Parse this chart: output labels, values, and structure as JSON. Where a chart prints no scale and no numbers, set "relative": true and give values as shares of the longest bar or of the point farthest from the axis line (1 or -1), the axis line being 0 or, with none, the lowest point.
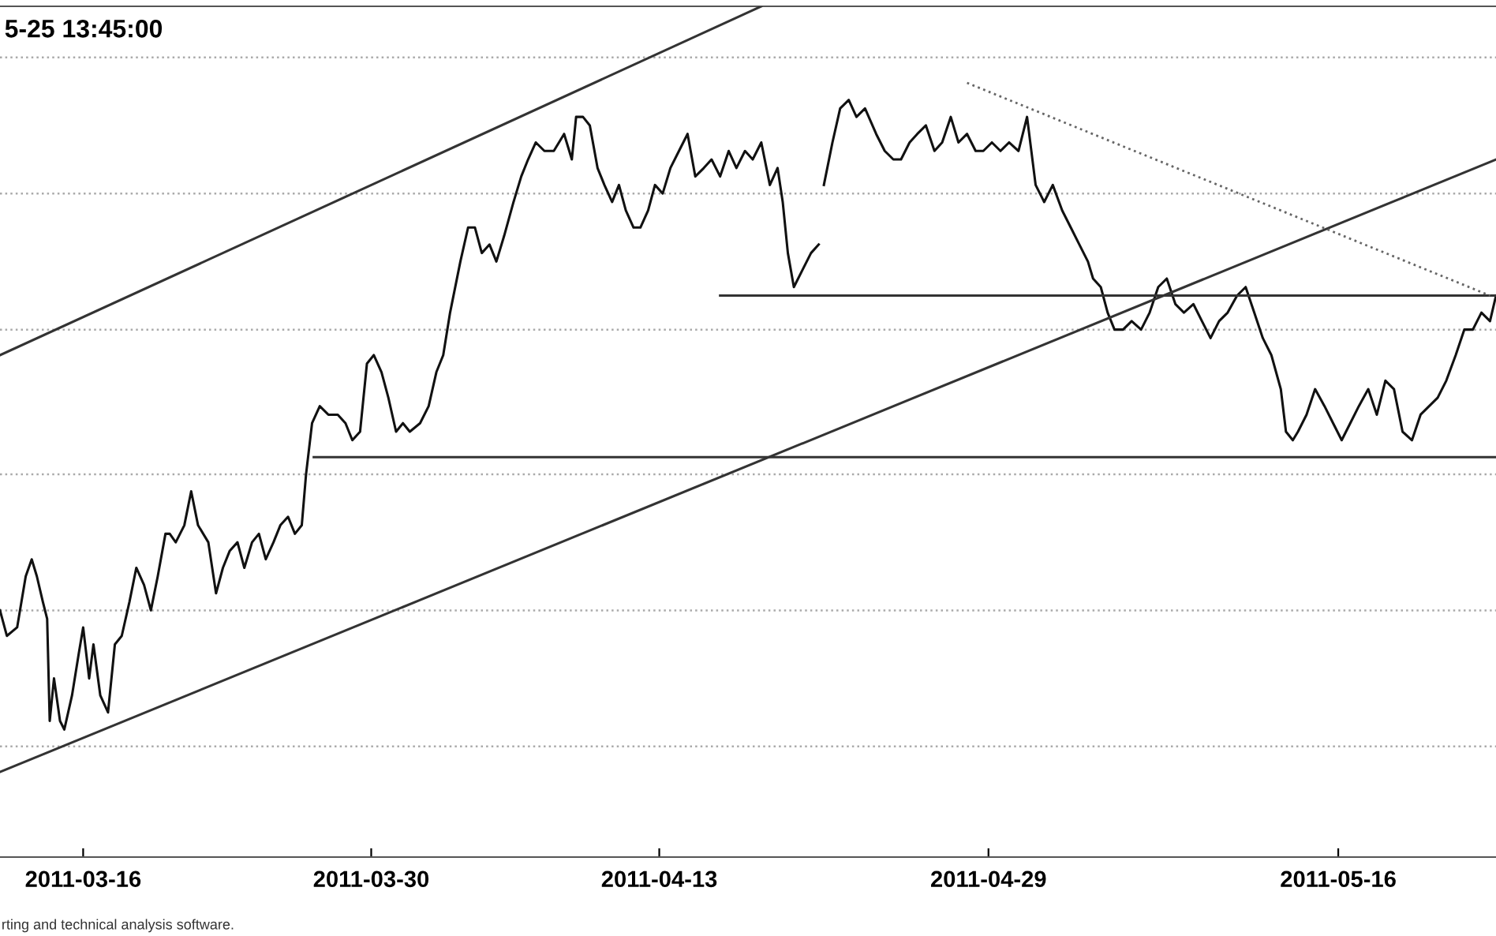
{
  "chart_data": {
    "type": "line",
    "relative": true,
    "title": "5-25 13:45:00",
    "annotations": [
      "rting and technical analysis software."
    ],
    "xlim": [
      "2011-03-11T23:00",
      "2011-05-23T16:00"
    ],
    "xticks": [
      "2011-03-16",
      "2011-03-30",
      "2011-04-13",
      "2011-04-29",
      "2011-05-16"
    ],
    "tick_labels": "x",
    "grid": false,
    "ref_lines": [
      {
        "axis": "y",
        "value": 0.94,
        "color": "#aaaaaa",
        "line_style": "dotted"
      },
      {
        "axis": "y",
        "value": 0.78,
        "color": "#aaaaaa",
        "line_style": "dotted"
      },
      {
        "axis": "y",
        "value": 0.62,
        "color": "#aaaaaa",
        "line_style": "dotted"
      },
      {
        "axis": "y",
        "value": 0.45,
        "color": "#aaaaaa",
        "line_style": "dotted"
      },
      {
        "axis": "y",
        "value": 0.29,
        "color": "#aaaaaa",
        "line_style": "dotted"
      },
      {
        "axis": "y",
        "value": 0.13,
        "color": "#aaaaaa",
        "line_style": "dotted"
      }
    ],
    "series": [
      {
        "color": "#111111",
        "line_style": "solid",
        "x": [
          "2011-03-11T23:00",
          "2011-03-12T07:00",
          "2011-03-12T19:00",
          "2011-03-13T05:00",
          "2011-03-13T12:00",
          "2011-03-13T18:00",
          "2011-03-14T01:00",
          "2011-03-14T06:00",
          "2011-03-14T09:00",
          "2011-03-14T14:00",
          "2011-03-14T21:00",
          "2011-03-15T02:00",
          "2011-03-15T11:00",
          "2011-03-15T19:00",
          "2011-03-16T00:00",
          "2011-03-16T07:00",
          "2011-03-16T12:00",
          "2011-03-16T20:00",
          "2011-03-17T05:00",
          "2011-03-17T13:00",
          "2011-03-17T21:00",
          "2011-03-18T06:00",
          "2011-03-18T14:00",
          "2011-03-18T23:00",
          "2011-03-19T07:00",
          "2011-03-19T15:00",
          "2011-03-20T00:00",
          "2011-03-20T05:00",
          "2011-03-20T12:00",
          "2011-03-20T22:00",
          "2011-03-21T06:00",
          "2011-03-21T14:00",
          "2011-03-22T02:00",
          "2011-03-22T11:00",
          "2011-03-22T19:00",
          "2011-03-23T03:00",
          "2011-03-23T12:00",
          "2011-03-23T20:00",
          "2011-03-24T05:00",
          "2011-03-24T13:00",
          "2011-03-24T21:00",
          "2011-03-25T06:00",
          "2011-03-25T14:00",
          "2011-03-25T23:00",
          "2011-03-26T07:00",
          "2011-03-26T15:00",
          "2011-03-26T20:00",
          "2011-03-27T03:00",
          "2011-03-27T12:00",
          "2011-03-27T22:00",
          "2011-03-28T09:00",
          "2011-03-28T18:00",
          "2011-03-29T02:00",
          "2011-03-29T11:00",
          "2011-03-29T19:00",
          "2011-03-30T03:00",
          "2011-03-30T12:00",
          "2011-03-30T20:00",
          "2011-03-31T05:00",
          "2011-03-31T13:00",
          "2011-03-31T21:00",
          "2011-04-01T09:00",
          "2011-04-01T19:00",
          "2011-04-02T04:00",
          "2011-04-02T12:00",
          "2011-04-02T20:00",
          "2011-04-03T08:00",
          "2011-04-03T17:00",
          "2011-04-04T01:00",
          "2011-04-04T09:00",
          "2011-04-04T18:00",
          "2011-04-05T02:00",
          "2011-04-05T11:00",
          "2011-04-05T22:00",
          "2011-04-06T07:00",
          "2011-04-06T15:00",
          "2011-04-07T00:00",
          "2011-04-07T10:00",
          "2011-04-07T21:00",
          "2011-04-08T09:00",
          "2011-04-08T18:00",
          "2011-04-08T23:00",
          "2011-04-09T07:00",
          "2011-04-09T15:00",
          "2011-04-10T00:00",
          "2011-04-10T08:00",
          "2011-04-10T17:00",
          "2011-04-11T01:00",
          "2011-04-11T09:00",
          "2011-04-11T18:00",
          "2011-04-12T02:00",
          "2011-04-12T11:00",
          "2011-04-12T19:00",
          "2011-04-13T04:00",
          "2011-04-13T13:00",
          "2011-04-13T23:00",
          "2011-04-14T09:00",
          "2011-04-14T18:00",
          "2011-04-15T04:00",
          "2011-04-15T13:00",
          "2011-04-15T23:00",
          "2011-04-16T09:00",
          "2011-04-16T18:00",
          "2011-04-17T04:00",
          "2011-04-17T13:00",
          "2011-04-17T23:00",
          "2011-04-18T09:00",
          "2011-04-18T18:00",
          "2011-04-19T00:00",
          "2011-04-19T06:00",
          "2011-04-19T13:00",
          "2011-04-19T23:00",
          "2011-04-20T09:00",
          "2011-04-20T18:00",
          "2011-04-20T22:00",
          "2011-04-21T00:00",
          "2011-04-21T10:00",
          "2011-04-21T19:00",
          "2011-04-22T05:00",
          "2011-04-22T14:00",
          "2011-04-23T00:00",
          "2011-04-23T13:00",
          "2011-04-23T23:00",
          "2011-04-24T09:00",
          "2011-04-24T18:00",
          "2011-04-25T04:00",
          "2011-04-25T13:00",
          "2011-04-25T23:00",
          "2011-04-26T09:00",
          "2011-04-26T18:00",
          "2011-04-27T04:00",
          "2011-04-27T13:00",
          "2011-04-27T23:00",
          "2011-04-28T09:00",
          "2011-04-28T18:00",
          "2011-04-29T04:00",
          "2011-04-29T14:00",
          "2011-04-30T00:00",
          "2011-04-30T11:00",
          "2011-04-30T21:00",
          "2011-05-01T07:00",
          "2011-05-01T17:00",
          "2011-05-02T03:00",
          "2011-05-02T14:00",
          "2011-05-03T00:00",
          "2011-05-03T10:00",
          "2011-05-03T20:00",
          "2011-05-04T02:00",
          "2011-05-04T11:00",
          "2011-05-04T19:00",
          "2011-05-05T03:00",
          "2011-05-05T13:00",
          "2011-05-05T23:00",
          "2011-05-06T10:00",
          "2011-05-06T20:00",
          "2011-05-07T06:00",
          "2011-05-07T16:00",
          "2011-05-08T02:00",
          "2011-05-08T12:00",
          "2011-05-08T23:00",
          "2011-05-09T09:00",
          "2011-05-09T19:00",
          "2011-05-10T05:00",
          "2011-05-10T15:00",
          "2011-05-11T02:00",
          "2011-05-11T12:00",
          "2011-05-11T22:00",
          "2011-05-12T08:00",
          "2011-05-12T18:00",
          "2011-05-13T05:00",
          "2011-05-13T11:00",
          "2011-05-13T19:00",
          "2011-05-14T01:00",
          "2011-05-14T11:00",
          "2011-05-14T21:00",
          "2011-05-15T08:00",
          "2011-05-15T18:00",
          "2011-05-16T04:00",
          "2011-05-16T14:00",
          "2011-05-17T00:00",
          "2011-05-17T11:00",
          "2011-05-17T21:00",
          "2011-05-18T07:00",
          "2011-05-18T17:00",
          "2011-05-19T03:00",
          "2011-05-19T14:00",
          "2011-05-20T00:00",
          "2011-05-20T10:00",
          "2011-05-20T20:00",
          "2011-05-21T06:00",
          "2011-05-21T17:00",
          "2011-05-22T03:00",
          "2011-05-22T13:00",
          "2011-05-22T23:00",
          "2011-05-23T09:00",
          "2011-05-23T16:00"
        ],
        "values": [
          0.29,
          0.26,
          0.27,
          0.33,
          0.35,
          0.33,
          0.3,
          0.28,
          0.16,
          0.21,
          0.16,
          0.15,
          0.19,
          0.24,
          0.27,
          0.21,
          0.25,
          0.19,
          0.17,
          0.25,
          0.26,
          0.3,
          0.34,
          0.32,
          0.29,
          0.33,
          0.38,
          0.38,
          0.37,
          0.39,
          0.43,
          0.39,
          0.37,
          0.31,
          0.34,
          0.36,
          0.37,
          0.34,
          0.37,
          0.38,
          0.35,
          0.37,
          0.39,
          0.4,
          0.38,
          0.39,
          0.45,
          0.51,
          0.53,
          0.52,
          0.52,
          0.51,
          0.49,
          0.5,
          0.58,
          0.59,
          0.57,
          0.54,
          0.5,
          0.51,
          0.5,
          0.51,
          0.53,
          0.57,
          0.59,
          0.64,
          0.7,
          0.74,
          0.74,
          0.71,
          0.72,
          0.7,
          0.73,
          0.77,
          0.8,
          0.82,
          0.84,
          0.83,
          0.83,
          0.85,
          0.82,
          0.87,
          0.87,
          0.86,
          0.81,
          0.79,
          0.77,
          0.79,
          0.76,
          0.74,
          0.74,
          0.76,
          0.79,
          0.78,
          0.81,
          0.83,
          0.85,
          0.8,
          0.81,
          0.82,
          0.8,
          0.83,
          0.81,
          0.83,
          0.82,
          0.84,
          0.79,
          0.81,
          0.77,
          0.71,
          0.67,
          0.69,
          0.71,
          0.72,
          null,
          0.79,
          0.84,
          0.88,
          0.89,
          0.87,
          0.88,
          0.85,
          0.83,
          0.82,
          0.82,
          0.84,
          0.85,
          0.86,
          0.83,
          0.84,
          0.87,
          0.84,
          0.85,
          0.83,
          0.83,
          0.84,
          0.83,
          0.84,
          0.83,
          0.87,
          0.79,
          0.77,
          0.79,
          0.76,
          0.74,
          0.72,
          0.7,
          0.68,
          0.67,
          0.64,
          0.62,
          0.62,
          0.63,
          0.62,
          0.64,
          0.67,
          0.68,
          0.65,
          0.64,
          0.65,
          0.63,
          0.61,
          0.63,
          0.64,
          0.66,
          0.67,
          0.64,
          0.61,
          0.59,
          0.55,
          0.5,
          0.49,
          0.5,
          0.52,
          0.55,
          0.53,
          0.51,
          0.49,
          0.51,
          0.53,
          0.55,
          0.52,
          0.56,
          0.55,
          0.5,
          0.49,
          0.52,
          0.53,
          0.54,
          0.56,
          0.59,
          0.62,
          0.62,
          0.64,
          0.63,
          0.66
        ]
      },
      {
        "color": "#333333",
        "line_style": "solid",
        "x": [
          "2011-03-11T23:00",
          "2011-04-17T23:00"
        ],
        "values": [
          0.59,
          1.0
        ]
      },
      {
        "color": "#333333",
        "line_style": "solid",
        "x": [
          "2011-03-11T23:00",
          "2011-05-23T16:00"
        ],
        "values": [
          0.1,
          0.82
        ]
      },
      {
        "color": "#333333",
        "line_style": "solid",
        "x": [
          "2011-03-27T05:00",
          "2011-05-23T16:00"
        ],
        "values": [
          0.47,
          0.47
        ]
      },
      {
        "color": "#333333",
        "line_style": "solid",
        "x": [
          "2011-04-15T23:00",
          "2011-05-23T16:00"
        ],
        "values": [
          0.66,
          0.66
        ]
      },
      {
        "color": "#666666",
        "line_style": "dotted",
        "x": [
          "2011-04-27T23:00",
          "2011-05-23T09:00"
        ],
        "values": [
          0.91,
          0.66
        ]
      }
    ]
  }
}
